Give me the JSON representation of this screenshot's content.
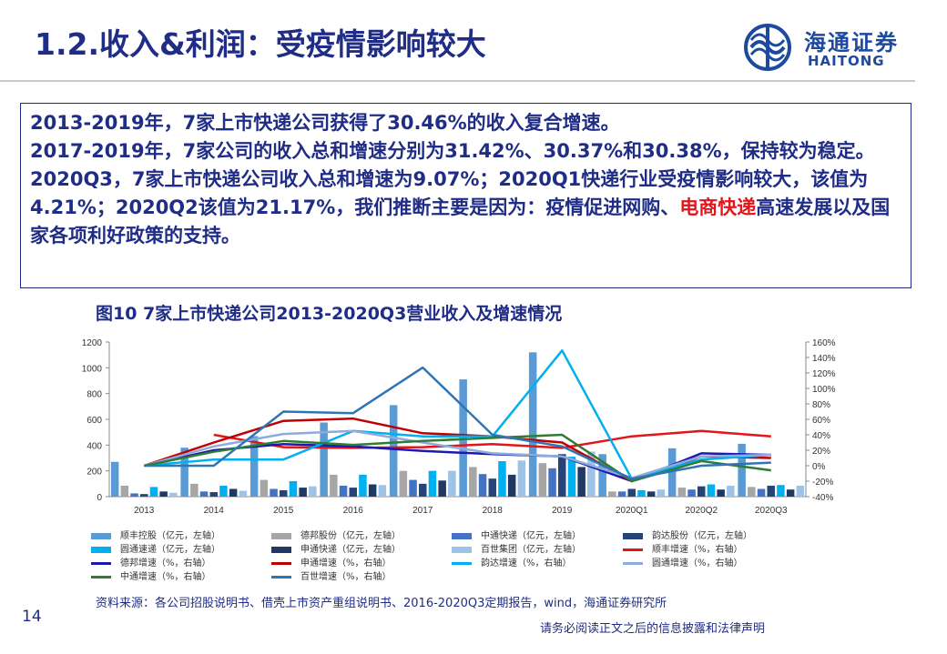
{
  "header": {
    "title": "1.2.收入&利润：受疫情影响较大",
    "logo_cn": "海通证券",
    "logo_en": "HAITONG"
  },
  "summary": {
    "line1": "2013-2019年，7家上市快递公司获得了30.46%的收入复合增速。",
    "line2": "2017-2019年，7家公司的收入总和增速分别为31.42%、30.37%和30.38%，保持较为稳定。",
    "line3a": "2020Q3，7家上市快递公司收入总和增速为9.07%；2020Q1快递行业受疫情影响较大，该值为4.21%；2020Q2该值为21.17%，我们推断主要是因为：疫情促进网购、",
    "line3_highlight": "电商快递",
    "line3b": "高速发展以及国家各项利好政策的支持。"
  },
  "figure_title": "图10 7家上市快递公司2013-2020Q3营业收入及增速情况",
  "chart_data": {
    "type": "bar",
    "categories": [
      "2013",
      "2014",
      "2015",
      "2016",
      "2017",
      "2018",
      "2019",
      "2020Q1",
      "2020Q2",
      "2020Q3"
    ],
    "ylim_left": [
      0,
      1200
    ],
    "yticks_left": [
      "0",
      "200",
      "400",
      "600",
      "800",
      "1000",
      "1200"
    ],
    "ylim_right": [
      -40,
      160
    ],
    "yticks_right": [
      "-40%",
      "-20%",
      "0%",
      "20%",
      "40%",
      "60%",
      "80%",
      "100%",
      "120%",
      "140%",
      "160%"
    ],
    "bar_series": [
      {
        "name": "顺丰控股（亿元，左轴）",
        "color": "#5b9bd5",
        "values": [
          270,
          380,
          470,
          575,
          710,
          910,
          1120,
          330,
          375,
          410
        ]
      },
      {
        "name": "德邦股份（亿元，左轴）",
        "color": "#a6a6a6",
        "values": [
          85,
          100,
          130,
          170,
          200,
          230,
          260,
          40,
          70,
          75
        ]
      },
      {
        "name": "中通快递（亿元，左轴）",
        "color": "#4472c4",
        "values": [
          25,
          40,
          60,
          85,
          130,
          175,
          220,
          40,
          55,
          60
        ]
      },
      {
        "name": "韵达股份（亿元，左轴）",
        "color": "#264478",
        "values": [
          20,
          35,
          50,
          70,
          100,
          140,
          330,
          60,
          80,
          85
        ]
      },
      {
        "name": "圆通速递（亿元，左轴）",
        "color": "#00b0f0",
        "values": [
          75,
          85,
          120,
          170,
          200,
          275,
          310,
          50,
          95,
          90
        ]
      },
      {
        "name": "申通快递（亿元，左轴）",
        "color": "#1f3864",
        "values": [
          40,
          60,
          70,
          95,
          125,
          170,
          230,
          40,
          55,
          55
        ]
      },
      {
        "name": "百世集团（亿元，左轴）",
        "color": "#9dc3e6",
        "values": [
          30,
          45,
          80,
          90,
          200,
          280,
          350,
          55,
          85,
          85
        ]
      }
    ],
    "line_series": [
      {
        "name": "顺丰增速（%，右轴）",
        "color": "#e2151b",
        "values": [
          null,
          40,
          24,
          23,
          24,
          28,
          23,
          38,
          45,
          38
        ]
      },
      {
        "name": "德邦增速（%，右轴）",
        "color": "#1a1ab0",
        "values": [
          0,
          20,
          28,
          25,
          19,
          15,
          12,
          -20,
          16,
          14
        ]
      },
      {
        "name": "申通增速（%，右轴）",
        "color": "#c00000",
        "values": [
          0,
          30,
          58,
          61,
          42,
          38,
          30,
          -20,
          12,
          10
        ]
      },
      {
        "name": "韵达增速（%，右轴）",
        "color": "#00b0f0",
        "values": [
          0,
          8,
          8,
          45,
          38,
          38,
          149,
          -17,
          8,
          14
        ]
      },
      {
        "name": "圆通增速（%，右轴）",
        "color": "#8faadc",
        "values": [
          0,
          25,
          41,
          45,
          30,
          16,
          12,
          -16,
          12,
          14
        ]
      },
      {
        "name": "中通增速（%，右轴）",
        "color": "#2e7d32",
        "values": [
          0,
          18,
          32,
          27,
          32,
          36,
          40,
          -20,
          6,
          -6
        ]
      },
      {
        "name": "百世增速（%，右轴）",
        "color": "#2e75b6",
        "values": [
          0,
          0,
          70,
          68,
          127,
          40,
          25,
          -17,
          0,
          4
        ]
      }
    ],
    "legend_position": "bottom",
    "grid": false
  },
  "source": "资料来源：各公司招股说明书、借壳上市资产重组说明书、2016-2020Q3定期报告，wind，海通证券研究所",
  "page_number": "14",
  "disclaimer": "请务必阅读正文之后的信息披露和法律声明"
}
